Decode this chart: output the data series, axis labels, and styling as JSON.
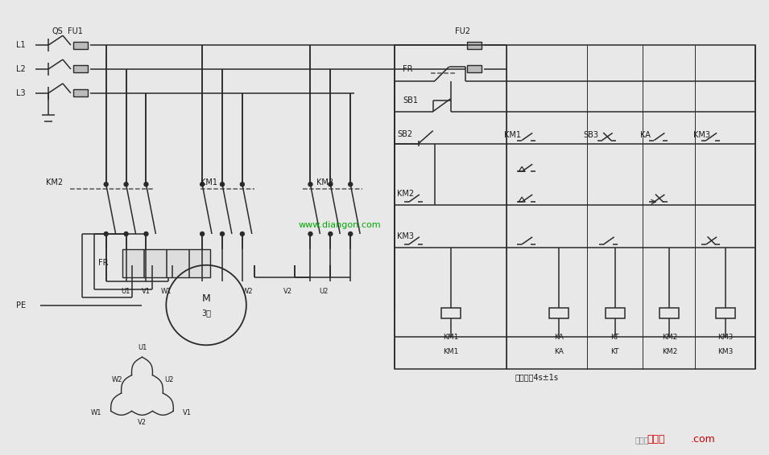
{
  "bg_color": "#e8e8e8",
  "line_color": "#2a2a2a",
  "dashed_color": "#555555",
  "text_color": "#1a1a1a",
  "watermark": "www.diangon.com",
  "watermark_color": "#00aa00",
  "logo1": "接线图",
  "logo2": ".com",
  "logo_color": "#cc0000",
  "note": "整定时间4s±1s"
}
